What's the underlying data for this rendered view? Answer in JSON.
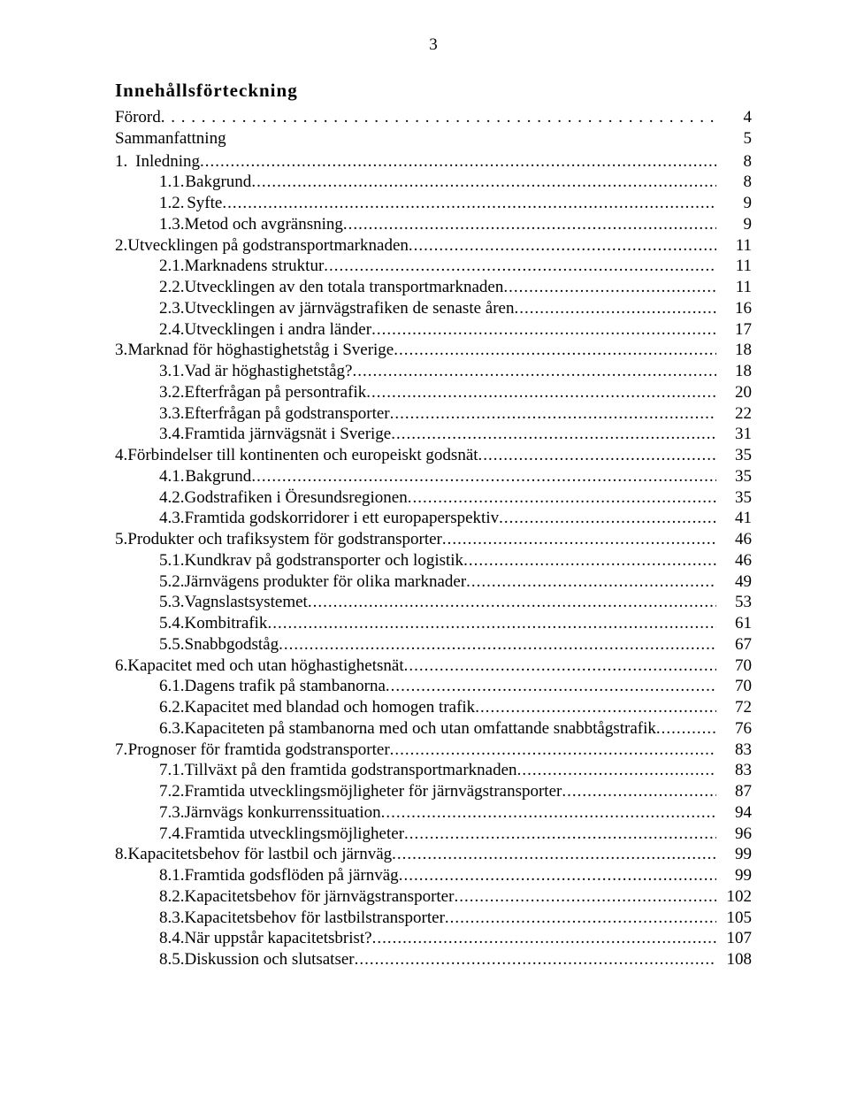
{
  "page_number": "3",
  "title": "Innehållsförteckning",
  "font": {
    "body_size_pt": 14,
    "title_size_pt": 15
  },
  "colors": {
    "text": "#000000",
    "background": "#ffffff"
  },
  "entries": [
    {
      "type": "top-dots",
      "num": "",
      "label": "Förord",
      "page": "4"
    },
    {
      "type": "summary",
      "num": "",
      "label": "Sammanfattning",
      "page": "5"
    },
    {
      "type": "top",
      "num": "1.",
      "label": "Inledning",
      "page": "8"
    },
    {
      "type": "sub",
      "num": "1.1.",
      "label": "Bakgrund",
      "page": "8"
    },
    {
      "type": "sub",
      "num": "1.2.",
      "label": "Syfte",
      "page": "9"
    },
    {
      "type": "sub",
      "num": "1.3.",
      "label": "Metod och avgränsning",
      "page": "9"
    },
    {
      "type": "top",
      "num": "2.",
      "label": "Utvecklingen på godstransportmarknaden",
      "page": "11"
    },
    {
      "type": "sub",
      "num": "2.1.",
      "label": "Marknadens struktur",
      "page": "11"
    },
    {
      "type": "sub",
      "num": "2.2.",
      "label": "Utvecklingen av den totala transportmarknaden",
      "page": "11"
    },
    {
      "type": "sub",
      "num": "2.3.",
      "label": "Utvecklingen av järnvägstrafiken de senaste åren",
      "page": "16"
    },
    {
      "type": "sub",
      "num": "2.4.",
      "label": "Utvecklingen i andra länder",
      "page": "17"
    },
    {
      "type": "top",
      "num": "3.",
      "label": "Marknad för höghastighetståg i Sverige",
      "page": "18"
    },
    {
      "type": "sub",
      "num": "3.1.",
      "label": "Vad är höghastighetståg?",
      "page": "18"
    },
    {
      "type": "sub",
      "num": "3.2.",
      "label": "Efterfrågan på persontrafik",
      "page": "20"
    },
    {
      "type": "sub",
      "num": "3.3.",
      "label": "Efterfrågan på godstransporter",
      "page": "22"
    },
    {
      "type": "sub",
      "num": "3.4.",
      "label": "Framtida järnvägsnät i Sverige",
      "page": "31"
    },
    {
      "type": "top",
      "num": "4.",
      "label": "Förbindelser till kontinenten och europeiskt godsnät",
      "page": "35"
    },
    {
      "type": "sub",
      "num": "4.1.",
      "label": "Bakgrund",
      "page": "35"
    },
    {
      "type": "sub",
      "num": "4.2.",
      "label": "Godstrafiken i Öresundsregionen",
      "page": "35"
    },
    {
      "type": "sub",
      "num": "4.3.",
      "label": "Framtida godskorridorer i ett europaperspektiv",
      "page": "41"
    },
    {
      "type": "top",
      "num": "5.",
      "label": "Produkter och trafiksystem för godstransporter",
      "page": "46"
    },
    {
      "type": "sub",
      "num": "5.1.",
      "label": "Kundkrav på godstransporter och logistik",
      "page": "46"
    },
    {
      "type": "sub",
      "num": "5.2.",
      "label": "Järnvägens produkter för olika marknader",
      "page": "49"
    },
    {
      "type": "sub",
      "num": "5.3.",
      "label": "Vagnslastsystemet",
      "page": "53"
    },
    {
      "type": "sub",
      "num": "5.4.",
      "label": "Kombitrafik",
      "page": "61"
    },
    {
      "type": "sub",
      "num": "5.5.",
      "label": "Snabbgodståg",
      "page": "67"
    },
    {
      "type": "top",
      "num": "6.",
      "label": "Kapacitet med och utan höghastighetsnät",
      "page": "70"
    },
    {
      "type": "sub",
      "num": "6.1.",
      "label": "Dagens trafik på stambanorna",
      "page": "70"
    },
    {
      "type": "sub",
      "num": "6.2.",
      "label": "Kapacitet med blandad och homogen trafik",
      "page": "72"
    },
    {
      "type": "sub",
      "num": "6.3.",
      "label": "Kapaciteten på stambanorna med och utan omfattande snabbtågstrafik",
      "page": "76"
    },
    {
      "type": "top",
      "num": "7.",
      "label": "Prognoser för framtida godstransporter",
      "page": "83"
    },
    {
      "type": "sub",
      "num": "7.1.",
      "label": "Tillväxt på den framtida godstransportmarknaden",
      "page": "83"
    },
    {
      "type": "sub",
      "num": "7.2.",
      "label": "Framtida utvecklingsmöjligheter för järnvägstransporter",
      "page": "87"
    },
    {
      "type": "sub",
      "num": "7.3.",
      "label": "Järnvägs konkurrenssituation",
      "page": "94"
    },
    {
      "type": "sub",
      "num": "7.4.",
      "label": "Framtida utvecklingsmöjligheter",
      "page": "96"
    },
    {
      "type": "top",
      "num": "8.",
      "label": "Kapacitetsbehov för lastbil och järnväg",
      "page": "99"
    },
    {
      "type": "sub",
      "num": "8.1.",
      "label": "Framtida godsflöden på järnväg",
      "page": "99"
    },
    {
      "type": "sub",
      "num": "8.2.",
      "label": "Kapacitetsbehov för järnvägstransporter",
      "page": "102"
    },
    {
      "type": "sub",
      "num": "8.3.",
      "label": "Kapacitetsbehov för lastbilstransporter",
      "page": "105"
    },
    {
      "type": "sub",
      "num": "8.4.",
      "label": "När uppstår kapacitetsbrist?",
      "page": "107"
    },
    {
      "type": "sub",
      "num": "8.5.",
      "label": "Diskussion och slutsatser",
      "page": "108"
    }
  ]
}
